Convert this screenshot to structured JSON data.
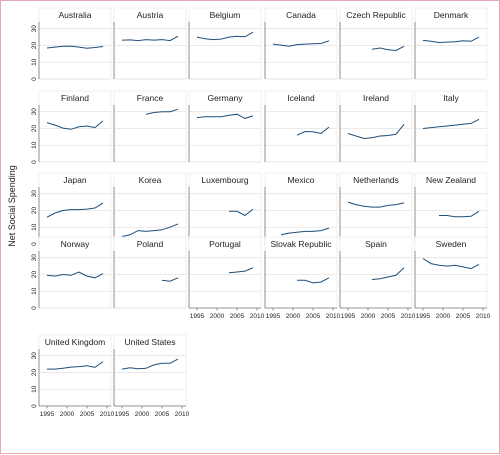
{
  "chart_data": {
    "type": "line",
    "layout": "small-multiples",
    "ylabel": "Net Social Spending",
    "xlim": [
      1993,
      2011
    ],
    "ylim": [
      0,
      34
    ],
    "xticks": [
      1995,
      2000,
      2005,
      2010
    ],
    "yticks": [
      0,
      10,
      20,
      30
    ],
    "grid": true,
    "colors": {
      "line": "#1f4e79",
      "frame": "#e8a9b6"
    },
    "panels": [
      {
        "name": "Australia",
        "x": [
          1995,
          1997,
          1999,
          2001,
          2003,
          2005,
          2007,
          2009
        ],
        "y": [
          18.5,
          19,
          19.5,
          19.6,
          19,
          18.4,
          18.8,
          19.4
        ]
      },
      {
        "name": "Austria",
        "x": [
          1995,
          1997,
          1999,
          2001,
          2003,
          2005,
          2007,
          2009
        ],
        "y": [
          23.2,
          23.3,
          22.9,
          23.5,
          23.2,
          23.5,
          22.9,
          25.5
        ]
      },
      {
        "name": "Belgium",
        "x": [
          1995,
          1997,
          1999,
          2001,
          2003,
          2005,
          2007,
          2009
        ],
        "y": [
          25,
          24,
          23.5,
          23.8,
          25,
          25.5,
          25.2,
          28
        ]
      },
      {
        "name": "Canada",
        "x": [
          1995,
          1997,
          1999,
          2001,
          2003,
          2005,
          2007,
          2009
        ],
        "y": [
          20.8,
          20.2,
          19.5,
          20.5,
          20.8,
          21,
          21.2,
          22.8
        ]
      },
      {
        "name": "Czech Republic",
        "x": [
          2001,
          2003,
          2005,
          2007,
          2009
        ],
        "y": [
          17.8,
          18.5,
          17.5,
          17,
          19.5
        ]
      },
      {
        "name": "Denmark",
        "x": [
          1995,
          1997,
          1999,
          2001,
          2003,
          2005,
          2007,
          2009
        ],
        "y": [
          23,
          22.5,
          21.8,
          22,
          22.2,
          22.8,
          22.5,
          25
        ]
      },
      {
        "name": "Finland",
        "x": [
          1995,
          1997,
          1999,
          2001,
          2003,
          2005,
          2007,
          2009
        ],
        "y": [
          23.5,
          22,
          20.2,
          19.5,
          21,
          21.5,
          20.5,
          24.5
        ]
      },
      {
        "name": "France",
        "x": [
          2001,
          2003,
          2005,
          2007,
          2009
        ],
        "y": [
          28.5,
          29.5,
          30,
          30,
          31.5
        ]
      },
      {
        "name": "Germany",
        "x": [
          1995,
          1997,
          1999,
          2001,
          2003,
          2005,
          2007,
          2009
        ],
        "y": [
          26.5,
          27,
          27,
          27,
          27.8,
          28.5,
          26,
          27.5
        ]
      },
      {
        "name": "Iceland",
        "x": [
          2001,
          2003,
          2005,
          2007,
          2009
        ],
        "y": [
          16,
          18.2,
          18,
          17,
          20.8
        ]
      },
      {
        "name": "Ireland",
        "x": [
          1995,
          1997,
          1999,
          2001,
          2003,
          2005,
          2007,
          2009
        ],
        "y": [
          17,
          15.5,
          14,
          14.5,
          15.5,
          15.8,
          16.5,
          22.5
        ]
      },
      {
        "name": "Italy",
        "x": [
          1995,
          1997,
          1999,
          2001,
          2003,
          2005,
          2007,
          2009
        ],
        "y": [
          20,
          20.5,
          21,
          21.5,
          22,
          22.5,
          23,
          25.5
        ]
      },
      {
        "name": "Japan",
        "x": [
          1995,
          1997,
          1999,
          2001,
          2003,
          2005,
          2007,
          2009
        ],
        "y": [
          16,
          18.5,
          20,
          20.5,
          20.5,
          20.8,
          21.5,
          24.5
        ]
      },
      {
        "name": "Korea",
        "x": [
          1995,
          1997,
          1999,
          2001,
          2003,
          2005,
          2007,
          2009
        ],
        "y": [
          4.5,
          5.5,
          8,
          7.5,
          8,
          8.5,
          10,
          12
        ]
      },
      {
        "name": "Luxembourg",
        "x": [
          2003,
          2005,
          2007,
          2009
        ],
        "y": [
          19.5,
          19.5,
          17,
          20.8
        ]
      },
      {
        "name": "Mexico",
        "x": [
          1997,
          1999,
          2001,
          2003,
          2005,
          2007,
          2009
        ],
        "y": [
          5.5,
          6.5,
          7,
          7.5,
          7.5,
          8,
          9.5
        ]
      },
      {
        "name": "Netherlands",
        "x": [
          1995,
          1997,
          1999,
          2001,
          2003,
          2005,
          2007,
          2009
        ],
        "y": [
          25,
          23.5,
          22.5,
          22,
          22,
          23,
          23.5,
          24.5
        ]
      },
      {
        "name": "New Zealand",
        "x": [
          1999,
          2001,
          2003,
          2005,
          2007,
          2009
        ],
        "y": [
          17,
          17,
          16.2,
          16.2,
          16.5,
          19.5
        ]
      },
      {
        "name": "Norway",
        "x": [
          1995,
          1997,
          1999,
          2001,
          2003,
          2005,
          2007,
          2009
        ],
        "y": [
          19.5,
          19,
          20,
          19.5,
          21.5,
          19,
          18,
          20.5
        ]
      },
      {
        "name": "Poland",
        "x": [
          2005,
          2007,
          2009
        ],
        "y": [
          16.5,
          16,
          18
        ]
      },
      {
        "name": "Portugal",
        "x": [
          2003,
          2005,
          2007,
          2009
        ],
        "y": [
          21,
          21.5,
          22,
          24
        ]
      },
      {
        "name": "Slovak Republic",
        "x": [
          2001,
          2003,
          2005,
          2007,
          2009
        ],
        "y": [
          16.5,
          16.5,
          15,
          15.5,
          18
        ]
      },
      {
        "name": "Spain",
        "x": [
          2001,
          2003,
          2005,
          2007,
          2009
        ],
        "y": [
          17,
          17.5,
          18.5,
          19.5,
          24
        ]
      },
      {
        "name": "Sweden",
        "x": [
          1995,
          1997,
          1999,
          2001,
          2003,
          2005,
          2007,
          2009
        ],
        "y": [
          29.5,
          26.5,
          25.5,
          25,
          25.5,
          24.5,
          23.5,
          26
        ]
      },
      {
        "name": "United Kingdom",
        "x": [
          1995,
          1997,
          1999,
          2001,
          2003,
          2005,
          2007,
          2009
        ],
        "y": [
          22,
          22,
          22.5,
          23.2,
          23.5,
          24,
          23,
          26.5
        ]
      },
      {
        "name": "United States",
        "x": [
          1995,
          1997,
          1999,
          2001,
          2003,
          2005,
          2007,
          2009
        ],
        "y": [
          22,
          22.8,
          22.2,
          22.5,
          24.5,
          25.5,
          25.5,
          28
        ]
      }
    ]
  }
}
